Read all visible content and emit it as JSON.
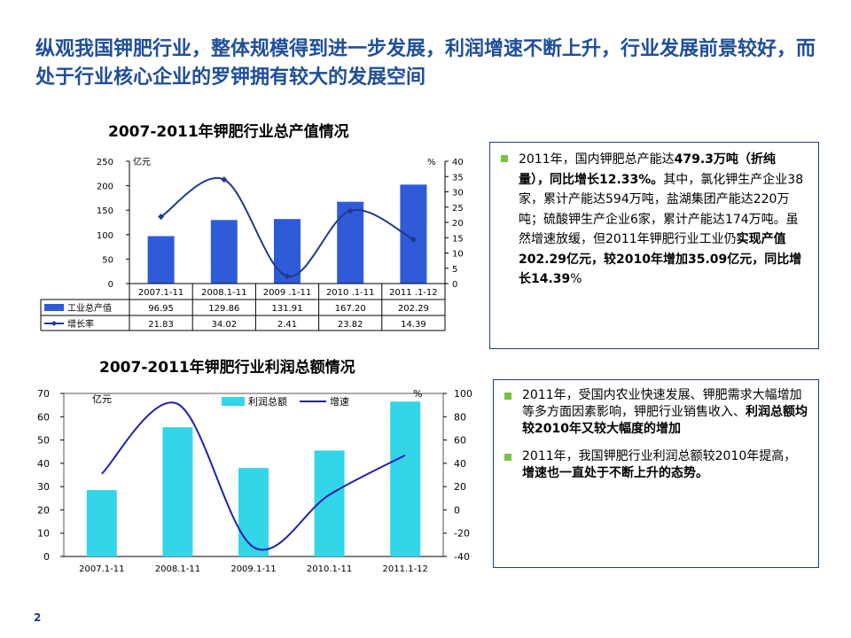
{
  "headline": "纵观我国钾肥行业，整体规模得到进一步发展，利润增速不断上升，行业发展前景较好，而处于行业核心企业的罗钾拥有较大的发展空间",
  "page_number": "2",
  "colors": {
    "title": "#1f4e9a",
    "bar1": "#2f5bd8",
    "bar2": "#33d5e8",
    "line1": "#1f3a8a",
    "line2": "#1f1fb0",
    "bullet": "#7ac143"
  },
  "bullets_top": [
    {
      "parts": [
        {
          "text": "2011年，国内钾肥总产能达",
          "bold": false
        },
        {
          "text": "479.3万吨（折纯量），同比增长12.33%。",
          "bold": true
        },
        {
          "text": "其中，氯化钾生产企业38家，累计产能达594万吨，盐湖集团产能达220万吨；硫酸钾生产企业6家，累计产能达174万吨。虽然增速放缓，但2011年钾肥行业工业仍",
          "bold": false
        },
        {
          "text": "实现产值202.29亿元，较2010年增加35.09亿元，同比增长14.39",
          "bold": true
        },
        {
          "text": "%",
          "bold": false
        }
      ]
    }
  ],
  "bullets_bottom": [
    {
      "parts": [
        {
          "text": "2011年，受国内农业快速发展、钾肥需求大幅增加等多方面因素影响，钾肥行业销售收入、",
          "bold": false
        },
        {
          "text": "利润总额均较2010年又较大幅度的增加",
          "bold": true
        }
      ]
    },
    {
      "parts": [
        {
          "text": "2011年，我国钾肥行业利润总额较2010年提高，",
          "bold": false
        },
        {
          "text": "增速也一直处于不断上升的态势。",
          "bold": true
        }
      ]
    }
  ],
  "chart_data": [
    {
      "type": "bar",
      "title": "2007-2011年钾肥行业总产值情况",
      "categories": [
        "2007.1-11",
        "2008.1-11",
        "2009 .1-11",
        "2010 .1-11",
        "2011 .1-12"
      ],
      "series": [
        {
          "name": "工业总产值",
          "kind": "bar",
          "axis": "left",
          "values": [
            96.95,
            129.86,
            131.91,
            167.2,
            202.29
          ]
        },
        {
          "name": "增长率",
          "kind": "line",
          "axis": "right",
          "values": [
            21.83,
            34.02,
            2.41,
            23.82,
            14.39
          ]
        }
      ],
      "value_labels": [
        [
          "96.95",
          "129.86",
          "131.91",
          "167.20",
          "202.29"
        ],
        [
          "21.83",
          "34.02",
          "2.41",
          "23.82",
          "14.39"
        ]
      ],
      "ylabel_left": "亿元",
      "ylabel_right": "%",
      "ylim_left": [
        0,
        250
      ],
      "yticks_left": [
        0,
        50,
        100,
        150,
        200,
        250
      ],
      "ylim_right": [
        0,
        40
      ],
      "yticks_right": [
        0,
        5,
        10,
        15,
        20,
        25,
        30,
        35,
        40
      ],
      "data_table": true
    },
    {
      "type": "bar",
      "title": "2007-2011年钾肥行业利润总额情况",
      "categories": [
        "2007.1-11",
        "2008.1-11",
        "2009.1-11",
        "2010.1-11",
        "2011.1-12"
      ],
      "series": [
        {
          "name": "利润总额",
          "kind": "bar",
          "axis": "left",
          "values": [
            28.5,
            55.5,
            38,
            45.5,
            66.5
          ]
        },
        {
          "name": "增速",
          "kind": "line",
          "axis": "right",
          "values": [
            31,
            91,
            -32,
            13,
            47
          ]
        }
      ],
      "ylabel_left": "亿元",
      "ylabel_right": "%",
      "ylim_left": [
        0,
        70
      ],
      "yticks_left": [
        0,
        10,
        20,
        30,
        40,
        50,
        60,
        70
      ],
      "ylim_right": [
        -40,
        100
      ],
      "yticks_right": [
        -40,
        -20,
        0,
        20,
        40,
        60,
        80,
        100
      ],
      "legend": "top-center"
    }
  ]
}
